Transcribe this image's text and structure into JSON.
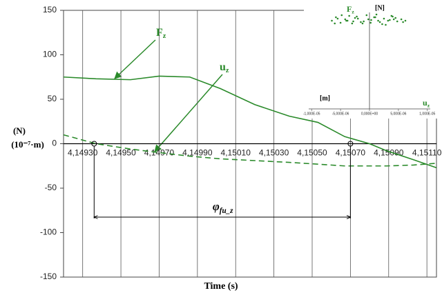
{
  "chart_data": {
    "type": "line",
    "xlabel": "Time (s)",
    "ylabels": [
      "(N)",
      "(10⁻⁷·m)"
    ],
    "xlim": [
      4.1492,
      4.15115
    ],
    "ylim": [
      -150,
      150
    ],
    "yticks": [
      150,
      100,
      50,
      0,
      -50,
      -100,
      -150
    ],
    "xticks": [
      {
        "value": 4.1493,
        "label": "4,14930"
      },
      {
        "value": 4.1495,
        "label": "4,14950"
      },
      {
        "value": 4.1497,
        "label": "4,14970"
      },
      {
        "value": 4.1499,
        "label": "4,14990"
      },
      {
        "value": 4.1501,
        "label": "4,15010"
      },
      {
        "value": 4.1503,
        "label": "4,15030"
      },
      {
        "value": 4.1505,
        "label": "4,15050"
      },
      {
        "value": 4.1507,
        "label": "4,15070"
      },
      {
        "value": 4.1509,
        "label": "4,15090"
      },
      {
        "value": 4.1511,
        "label": "4,15110"
      }
    ],
    "grid": true,
    "x": [
      4.1492,
      4.14937,
      4.14955,
      4.1497,
      4.14986,
      4.15002,
      4.1502,
      4.15038,
      4.15053,
      4.15067,
      4.1508,
      4.15089,
      4.15103,
      4.15115
    ],
    "series": [
      {
        "name": "Fz",
        "color": "#2a8a2a",
        "dash": false,
        "values": [
          75,
          73,
          72,
          76,
          75,
          62,
          44,
          31,
          24,
          8,
          0,
          -8,
          -18,
          -27
        ]
      },
      {
        "name": "uz",
        "color": "#2a8a2a",
        "dash": true,
        "values": [
          10,
          0,
          -6,
          -10,
          -14,
          -17,
          -19,
          -21,
          -23,
          -25,
          -25,
          -25,
          -24,
          -22
        ]
      }
    ],
    "annotations": [
      {
        "text": "F",
        "sub": "z"
      },
      {
        "text": "u",
        "sub": "z"
      }
    ],
    "phase": {
      "text": "φ",
      "sub": "fu_z",
      "x": [
        4.14936,
        4.1507
      ]
    },
    "inset": {
      "type": "scatter",
      "ylabel": "[N]",
      "xlabel": "[m]",
      "ytitle": {
        "text": "F",
        "sub": "z"
      },
      "xtitle": {
        "text": "u",
        "sub": "z"
      },
      "xlim": [
        -1.05e-05,
        1.05e-05
      ],
      "ylim": [
        0,
        140
      ],
      "xticks": [
        {
          "value": -1e-05,
          "label": "-1,000E-05"
        },
        {
          "value": -5e-06,
          "label": "-5,000E-06"
        },
        {
          "value": 0,
          "label": "0,000E+00"
        },
        {
          "value": 5e-06,
          "label": "5,000E-06"
        },
        {
          "value": 1e-05,
          "label": "1,000E-05"
        }
      ],
      "color": "#2a8a2a",
      "x": [
        -6.5e-06,
        -5.8e-06,
        -5e-06,
        -4.2e-06,
        -3.5e-06,
        -2.8e-06,
        -2e-06,
        -1.2e-06,
        -5e-07,
        3e-07,
        1e-06,
        1.8e-06,
        2.5e-06,
        3.2e-06,
        4e-06,
        4.8e-06,
        5.5e-06,
        6.2e-06,
        -6e-06,
        -4.8e-06,
        -3.8e-06,
        -2.5e-06,
        -1.5e-06,
        -2e-07,
        1.2e-06,
        2.2e-06,
        3.5e-06,
        4.5e-06,
        5.8e-06,
        -5.5e-06,
        -3e-06,
        -1e-06,
        8e-07,
        2.8e-06,
        4.2e-06,
        -4e-06,
        -2.2e-06,
        2e-07,
        1.5e-06,
        3.8e-06
      ],
      "values": [
        128,
        133,
        125,
        130,
        135,
        127,
        131,
        124,
        136,
        129,
        133,
        126,
        131,
        128,
        134,
        127,
        130,
        128,
        124,
        136,
        128,
        132,
        126,
        130,
        137,
        123,
        129,
        132,
        126,
        131,
        124,
        127,
        133,
        122,
        130,
        128,
        134,
        125,
        128,
        135
      ]
    }
  }
}
